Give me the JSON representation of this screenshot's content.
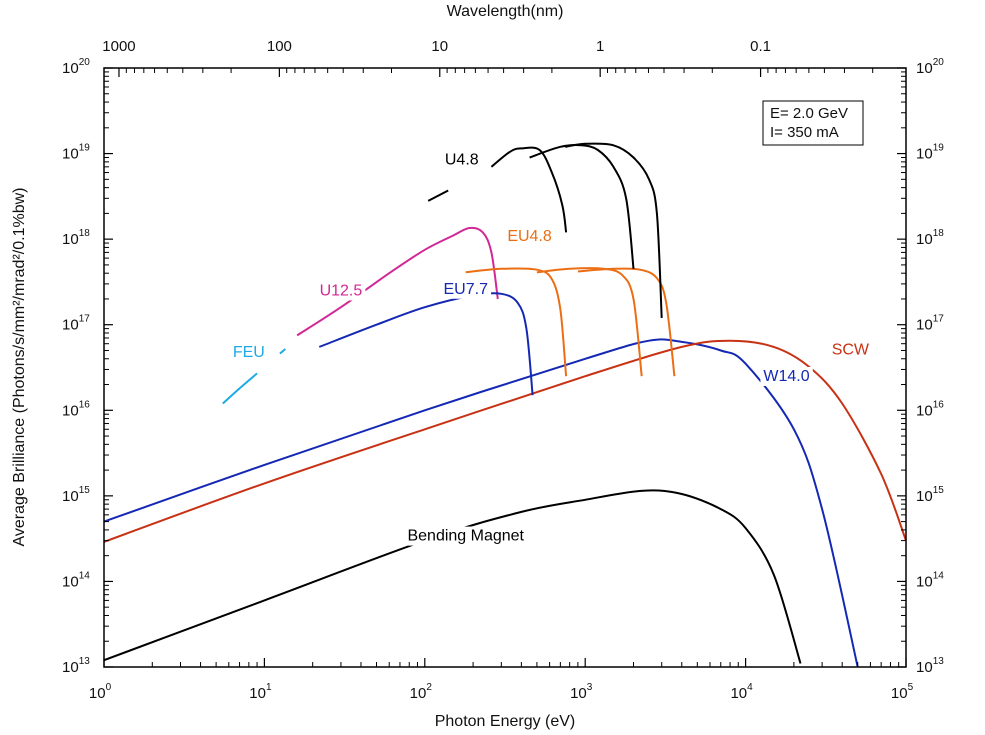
{
  "chart_data": {
    "type": "line",
    "title": "",
    "xlabel": "Photon Energy (eV)",
    "ylabel": "Average Brilliance (Photons/s/mm²/mrad²/0.1%bw)",
    "top_xlabel": "Wavelength(nm)",
    "x_scale": "log",
    "y_scale": "log",
    "xlim": [
      1,
      100000
    ],
    "ylim": [
      10000000000000.0,
      1e+20
    ],
    "x_ticks": [
      {
        "value": 1,
        "base": "10",
        "exp": "0"
      },
      {
        "value": 10,
        "base": "10",
        "exp": "1"
      },
      {
        "value": 100,
        "base": "10",
        "exp": "2"
      },
      {
        "value": 1000,
        "base": "10",
        "exp": "3"
      },
      {
        "value": 10000,
        "base": "10",
        "exp": "4"
      },
      {
        "value": 100000,
        "base": "10",
        "exp": "5"
      }
    ],
    "y_ticks": [
      {
        "value": 10000000000000.0,
        "base": "10",
        "exp": "13"
      },
      {
        "value": 100000000000000.0,
        "base": "10",
        "exp": "14"
      },
      {
        "value": 1000000000000000.0,
        "base": "10",
        "exp": "15"
      },
      {
        "value": 1e+16,
        "base": "10",
        "exp": "16"
      },
      {
        "value": 1e+17,
        "base": "10",
        "exp": "17"
      },
      {
        "value": 1e+18,
        "base": "10",
        "exp": "18"
      },
      {
        "value": 1e+19,
        "base": "10",
        "exp": "19"
      },
      {
        "value": 1e+20,
        "base": "10",
        "exp": "20"
      }
    ],
    "wavelength_ticks": [
      {
        "nm": 1000,
        "label": "1000"
      },
      {
        "nm": 100,
        "label": "100"
      },
      {
        "nm": 10,
        "label": "10"
      },
      {
        "nm": 1,
        "label": "1"
      },
      {
        "nm": 0.1,
        "label": "0.1"
      }
    ],
    "info_box": [
      "E= 2.0 GeV",
      "I= 350 mA"
    ],
    "grid": false,
    "series": [
      {
        "label": "Bending Magnet",
        "color": "#000000",
        "points": [
          [
            1,
            12000000000000.0
          ],
          [
            10,
            60000000000000.0
          ],
          [
            100,
            300000000000000.0
          ],
          [
            400,
            650000000000000.0
          ],
          [
            1000,
            900000000000000.0
          ],
          [
            2300,
            1150000000000000.0
          ],
          [
            4000,
            1050000000000000.0
          ],
          [
            7000,
            700000000000000.0
          ],
          [
            10000,
            420000000000000.0
          ],
          [
            15000,
            120000000000000.0
          ],
          [
            22000,
            11000000000000.0
          ]
        ]
      },
      {
        "label": "W14.0",
        "color": "#1428b4",
        "points": [
          [
            1,
            500000000000000.0
          ],
          [
            10,
            2300000000000000.0
          ],
          [
            100,
            1e+16
          ],
          [
            1000,
            4e+16
          ],
          [
            2500,
            6.5e+16
          ],
          [
            4000,
            6.3e+16
          ],
          [
            7000,
            5e+16
          ],
          [
            10000,
            3.5e+16
          ],
          [
            20000,
            6000000000000000.0
          ],
          [
            30000,
            700000000000000.0
          ],
          [
            50000,
            10000000000000.0
          ]
        ]
      },
      {
        "label": "SCW",
        "color": "#c83214",
        "points": [
          [
            1,
            290000000000000.0
          ],
          [
            10,
            1400000000000000.0
          ],
          [
            100,
            6000000000000000.0
          ],
          [
            1000,
            2.5e+16
          ],
          [
            4000,
            5.5e+16
          ],
          [
            8000,
            6.5e+16
          ],
          [
            15000,
            5.5e+16
          ],
          [
            25000,
            3.2e+16
          ],
          [
            40000,
            1.2e+16
          ],
          [
            70000,
            1800000000000000.0
          ],
          [
            100000,
            300000000000000.0
          ]
        ]
      },
      {
        "label": "FEU",
        "color": "#1eaae6",
        "points": [
          [
            5.5,
            1.2e+16
          ],
          [
            7,
            1.8e+16
          ],
          [
            9,
            2.7e+16
          ]
        ]
      },
      {
        "label": "FEU",
        "color": "#1eaae6",
        "points": [
          [
            12.5,
            4.6e+16
          ],
          [
            13.5,
            5.2e+16
          ]
        ]
      },
      {
        "label": "U12.5",
        "color": "#d22896",
        "points": [
          [
            16,
            7.5e+16
          ],
          [
            30,
            1.6e+17
          ],
          [
            60,
            4e+17
          ],
          [
            100,
            7.5e+17
          ],
          [
            150,
            1.1e+18
          ],
          [
            190,
            1.35e+18
          ],
          [
            230,
            1.2e+18
          ],
          [
            260,
            7e+17
          ],
          [
            285,
            2e+17
          ]
        ]
      },
      {
        "label": "EU7.7",
        "color": "#1428b4",
        "points": [
          [
            22,
            5.5e+16
          ],
          [
            50,
            1e+17
          ],
          [
            100,
            1.6e+17
          ],
          [
            200,
            2.2e+17
          ],
          [
            300,
            2.3e+17
          ],
          [
            380,
            1.8e+17
          ],
          [
            430,
            9e+16
          ],
          [
            470,
            1.5e+16
          ]
        ]
      },
      {
        "label": "EU4.8",
        "color": "#eb6e14",
        "points": [
          [
            180,
            4.1e+17
          ],
          [
            300,
            4.5e+17
          ],
          [
            500,
            4.4e+17
          ],
          [
            620,
            3.4e+17
          ],
          [
            700,
            1.5e+17
          ],
          [
            760,
            2.5e+16
          ]
        ]
      },
      {
        "label": "EU4.8",
        "color": "#eb6e14",
        "points": [
          [
            500,
            4.1e+17
          ],
          [
            800,
            4.5e+17
          ],
          [
            1300,
            4.5e+17
          ],
          [
            1700,
            3.8e+17
          ],
          [
            2000,
            2e+17
          ],
          [
            2250,
            2.5e+16
          ]
        ]
      },
      {
        "label": "EU4.8",
        "color": "#eb6e14",
        "points": [
          [
            900,
            4.2e+17
          ],
          [
            1500,
            4.5e+17
          ],
          [
            2200,
            4.4e+17
          ],
          [
            2800,
            3.5e+17
          ],
          [
            3200,
            1.8e+17
          ],
          [
            3600,
            2.5e+16
          ]
        ]
      },
      {
        "label": "U4.8",
        "color": "#000000",
        "points": [
          [
            105,
            2.8e+18
          ],
          [
            140,
            3.7e+18
          ]
        ]
      },
      {
        "label": "U4.8",
        "color": "#000000",
        "points": [
          [
            260,
            7e+18
          ],
          [
            340,
            1.05e+19
          ],
          [
            400,
            1.15e+19
          ],
          [
            520,
            1.1e+19
          ],
          [
            620,
            6e+18
          ],
          [
            720,
            2.5e+18
          ],
          [
            760,
            1.2e+18
          ]
        ]
      },
      {
        "label": "U4.8",
        "color": "#000000",
        "points": [
          [
            450,
            9e+18
          ],
          [
            700,
            1.2e+19
          ],
          [
            950,
            1.25e+19
          ],
          [
            1200,
            1.1e+19
          ],
          [
            1500,
            7e+18
          ],
          [
            1800,
            3e+18
          ],
          [
            2000,
            4.5e+17
          ]
        ]
      },
      {
        "label": "U4.8",
        "color": "#000000",
        "points": [
          [
            750,
            1.2e+19
          ],
          [
            1000,
            1.3e+19
          ],
          [
            1500,
            1.25e+19
          ],
          [
            2000,
            9e+18
          ],
          [
            2500,
            5e+18
          ],
          [
            2800,
            2e+18
          ],
          [
            3000,
            1.2e+17
          ]
        ]
      }
    ],
    "annotations": [
      {
        "text": "Bending Magnet",
        "color": "#000000",
        "x": 180,
        "y": 300000000000000.0
      },
      {
        "text": "W14.0",
        "color": "#1428b4",
        "x": 18000,
        "y": 2.2e+16
      },
      {
        "text": "SCW",
        "color": "#c83214",
        "x": 45000,
        "y": 4.5e+16
      },
      {
        "text": "FEU",
        "color": "#1eaae6",
        "x": 8,
        "y": 4.2e+16
      },
      {
        "text": "U12.5",
        "color": "#d22896",
        "x": 30,
        "y": 2.2e+17
      },
      {
        "text": "EU7.7",
        "color": "#1428b4",
        "x": 180,
        "y": 2.3e+17
      },
      {
        "text": "EU4.8",
        "color": "#eb6e14",
        "x": 450,
        "y": 9.5e+17
      },
      {
        "text": "U4.8",
        "color": "#000000",
        "x": 170,
        "y": 7.5e+18
      }
    ]
  }
}
